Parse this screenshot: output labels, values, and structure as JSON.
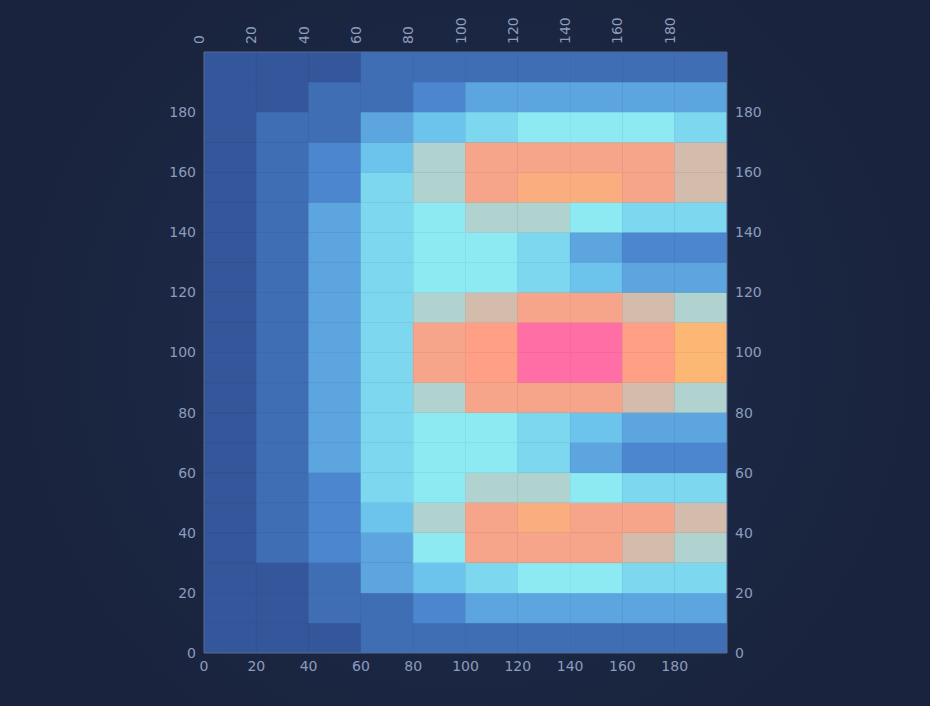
{
  "chart_data": {
    "type": "heatmap",
    "x": [
      10,
      30,
      50,
      70,
      90,
      110,
      130,
      150,
      170,
      190
    ],
    "y": [
      5,
      15,
      25,
      35,
      45,
      55,
      65,
      75,
      85,
      95,
      105,
      115,
      125,
      135,
      145,
      155,
      165,
      175,
      185,
      195
    ],
    "z": [
      [
        1.5,
        1.5,
        1.5,
        2,
        2,
        2,
        2,
        2,
        2,
        2
      ],
      [
        1.5,
        1.5,
        2,
        2,
        2.5,
        3,
        3,
        3,
        3,
        3
      ],
      [
        1.5,
        1.5,
        2,
        3,
        3.5,
        4,
        4.5,
        4.5,
        4,
        4
      ],
      [
        1.5,
        2,
        2.5,
        3,
        4.5,
        6,
        6,
        6,
        5.5,
        5
      ],
      [
        1.5,
        2,
        2.5,
        3.5,
        5,
        6,
        6.5,
        6,
        6,
        5.5
      ],
      [
        1.5,
        2,
        2.5,
        4,
        4.5,
        5,
        5,
        4.5,
        4,
        4
      ],
      [
        1.5,
        2,
        3,
        4,
        4.5,
        4.5,
        4,
        3,
        2.5,
        2.5
      ],
      [
        1.5,
        2,
        3,
        4,
        4.5,
        4.5,
        4,
        3.5,
        3,
        3
      ],
      [
        1.5,
        2,
        3,
        4,
        5,
        6,
        6,
        6,
        5.5,
        5
      ],
      [
        1.5,
        2,
        3,
        4,
        6,
        8,
        9,
        9,
        8,
        7
      ],
      [
        1.5,
        2,
        3,
        4,
        6,
        8,
        9,
        9,
        8,
        7
      ],
      [
        1.5,
        2,
        3,
        4,
        5,
        5.5,
        6,
        6,
        5.5,
        5
      ],
      [
        1.5,
        2,
        3,
        4,
        4.5,
        4.5,
        4,
        3.5,
        3,
        3
      ],
      [
        1.5,
        2,
        3,
        4,
        4.5,
        4.5,
        4,
        3,
        2.5,
        2.5
      ],
      [
        1.5,
        2,
        3,
        4,
        4.5,
        5,
        5,
        4.5,
        4,
        4
      ],
      [
        1.5,
        2,
        2.5,
        4,
        5,
        6,
        6.5,
        6.5,
        6,
        5.5
      ],
      [
        1.5,
        2,
        2.5,
        3.5,
        5,
        6,
        6,
        6,
        6,
        5.5
      ],
      [
        1.5,
        2,
        2,
        3,
        3.5,
        4,
        4.5,
        4.5,
        4.5,
        4
      ],
      [
        1.5,
        1.5,
        2,
        2,
        2.5,
        3,
        3,
        3,
        3,
        3
      ],
      [
        1.5,
        1.5,
        1.5,
        2,
        2,
        2,
        2,
        2,
        2,
        2
      ]
    ],
    "zlim": [
      0,
      10
    ],
    "xlim": [
      0,
      200
    ],
    "ylim": [
      0,
      200
    ],
    "xticks": [
      0,
      20,
      40,
      60,
      80,
      100,
      120,
      140,
      160,
      180
    ],
    "yticks": [
      0,
      20,
      40,
      60,
      80,
      100,
      120,
      140,
      160,
      180
    ]
  }
}
